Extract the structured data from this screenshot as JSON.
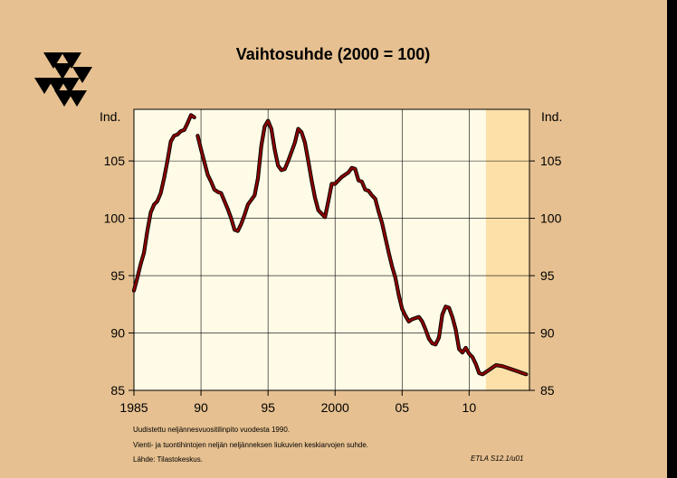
{
  "colors": {
    "background": "#e6c090",
    "plot_area": "#fffbe6",
    "forecast_band": "#fde0a8",
    "series_line": "#8b0000"
  },
  "logo": {
    "icon": "etla-triangles-logo"
  },
  "notes": [
    "Uudistettu neljännesvuositilinpito vuodesta 1990.",
    "Vienti- ja tuontihintojen neljän neljänneksen liukuvien keskiarvojen suhde.",
    "Lähde:   Tilastokeskus."
  ],
  "source_code": "ETLA S12.1/u01",
  "chart_data": {
    "type": "line",
    "title": "Vaihtosuhde (2000 = 100)",
    "y_unit_left": "Ind.",
    "y_unit_right": "Ind.",
    "ylim": [
      85,
      109.5
    ],
    "y_ticks": [
      85,
      90,
      95,
      100,
      105
    ],
    "xlim": [
      1985,
      2014.5
    ],
    "x_ticks": [
      {
        "value": 1985,
        "label": "1985"
      },
      {
        "value": 1990,
        "label": "90"
      },
      {
        "value": 1995,
        "label": "95"
      },
      {
        "value": 2000,
        "label": "2000"
      },
      {
        "value": 2005,
        "label": "05"
      },
      {
        "value": 2010,
        "label": "10"
      }
    ],
    "grid": true,
    "forecast_from": 2011.25,
    "series": [
      {
        "segments": [
          [
            [
              1985.0,
              93.7
            ],
            [
              1985.25,
              94.8
            ],
            [
              1985.5,
              96.0
            ],
            [
              1985.75,
              97.0
            ],
            [
              1986.0,
              98.9
            ],
            [
              1986.25,
              100.5
            ],
            [
              1986.5,
              101.2
            ],
            [
              1986.75,
              101.5
            ],
            [
              1987.0,
              102.2
            ],
            [
              1987.25,
              103.5
            ],
            [
              1987.5,
              105.0
            ],
            [
              1987.75,
              106.7
            ],
            [
              1988.0,
              107.2
            ],
            [
              1988.25,
              107.3
            ],
            [
              1988.5,
              107.6
            ],
            [
              1988.75,
              107.7
            ],
            [
              1989.0,
              108.3
            ],
            [
              1989.25,
              109.0
            ],
            [
              1989.5,
              108.8
            ]
          ],
          [
            [
              1989.75,
              107.2
            ],
            [
              1990.0,
              106.0
            ],
            [
              1990.25,
              104.9
            ],
            [
              1990.5,
              103.8
            ],
            [
              1990.75,
              103.2
            ],
            [
              1991.0,
              102.5
            ],
            [
              1991.25,
              102.3
            ],
            [
              1991.5,
              102.2
            ],
            [
              1991.75,
              101.5
            ],
            [
              1992.0,
              100.8
            ],
            [
              1992.25,
              100.0
            ],
            [
              1992.5,
              99.0
            ],
            [
              1992.75,
              98.9
            ],
            [
              1993.0,
              99.5
            ],
            [
              1993.25,
              100.3
            ],
            [
              1993.5,
              101.2
            ],
            [
              1993.75,
              101.6
            ],
            [
              1994.0,
              102.0
            ],
            [
              1994.25,
              103.5
            ],
            [
              1994.5,
              106.3
            ],
            [
              1994.75,
              108.0
            ],
            [
              1995.0,
              108.5
            ],
            [
              1995.25,
              107.8
            ],
            [
              1995.5,
              106.0
            ],
            [
              1995.75,
              104.6
            ],
            [
              1996.0,
              104.2
            ],
            [
              1996.25,
              104.3
            ],
            [
              1996.5,
              105.0
            ],
            [
              1996.75,
              105.8
            ],
            [
              1997.0,
              106.6
            ],
            [
              1997.25,
              107.8
            ],
            [
              1997.5,
              107.5
            ],
            [
              1997.75,
              106.6
            ],
            [
              1998.0,
              105.0
            ],
            [
              1998.25,
              103.3
            ],
            [
              1998.5,
              101.8
            ],
            [
              1998.75,
              100.7
            ],
            [
              1999.0,
              100.4
            ],
            [
              1999.25,
              100.1
            ],
            [
              1999.5,
              101.5
            ],
            [
              1999.75,
              103.0
            ],
            [
              2000.0,
              103.0
            ],
            [
              2000.25,
              103.3
            ],
            [
              2000.5,
              103.6
            ],
            [
              2000.75,
              103.8
            ],
            [
              2001.0,
              104.0
            ],
            [
              2001.25,
              104.4
            ],
            [
              2001.5,
              104.3
            ],
            [
              2001.75,
              103.3
            ],
            [
              2002.0,
              103.2
            ],
            [
              2002.25,
              102.5
            ],
            [
              2002.5,
              102.4
            ],
            [
              2002.75,
              102.0
            ],
            [
              2003.0,
              101.7
            ],
            [
              2003.25,
              100.6
            ],
            [
              2003.5,
              99.6
            ],
            [
              2003.75,
              98.3
            ],
            [
              2004.0,
              97.0
            ],
            [
              2004.25,
              95.8
            ],
            [
              2004.5,
              94.8
            ],
            [
              2004.75,
              93.3
            ],
            [
              2005.0,
              92.1
            ],
            [
              2005.25,
              91.5
            ],
            [
              2005.5,
              91.0
            ],
            [
              2005.75,
              91.2
            ],
            [
              2006.0,
              91.3
            ],
            [
              2006.25,
              91.4
            ],
            [
              2006.5,
              91.0
            ],
            [
              2006.75,
              90.3
            ],
            [
              2007.0,
              89.5
            ],
            [
              2007.25,
              89.1
            ],
            [
              2007.5,
              89.0
            ],
            [
              2007.75,
              89.6
            ],
            [
              2008.0,
              91.6
            ],
            [
              2008.25,
              92.3
            ],
            [
              2008.5,
              92.2
            ],
            [
              2008.75,
              91.4
            ],
            [
              2009.0,
              90.3
            ],
            [
              2009.25,
              88.6
            ],
            [
              2009.5,
              88.3
            ],
            [
              2009.75,
              88.7
            ],
            [
              2010.0,
              88.2
            ],
            [
              2010.25,
              87.9
            ],
            [
              2010.5,
              87.3
            ],
            [
              2010.75,
              86.5
            ],
            [
              2011.0,
              86.4
            ],
            [
              2011.25,
              86.6
            ],
            [
              2011.5,
              86.8
            ],
            [
              2011.75,
              87.0
            ],
            [
              2012.0,
              87.2
            ],
            [
              2012.5,
              87.1
            ],
            [
              2013.0,
              86.9
            ],
            [
              2013.5,
              86.7
            ],
            [
              2014.0,
              86.5
            ],
            [
              2014.25,
              86.4
            ]
          ]
        ]
      }
    ]
  }
}
